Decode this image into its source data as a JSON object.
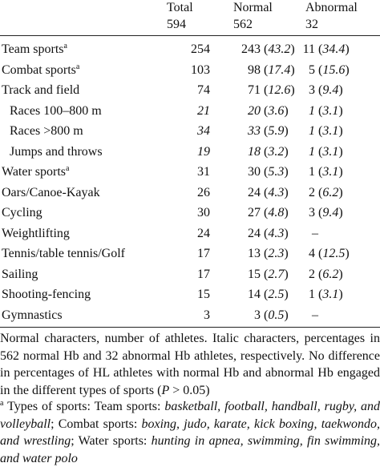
{
  "header": {
    "columns": [
      {
        "label": "Total",
        "n": 594
      },
      {
        "label": "Normal",
        "n": 562
      },
      {
        "label": "Abnormal",
        "n": 32
      }
    ]
  },
  "table": {
    "rows": [
      {
        "sport": "Team sports",
        "sup": "a",
        "total": 254,
        "normal": {
          "n": 243,
          "pct": 43.2
        },
        "abnormal": {
          "n": 11,
          "pct": 34.4
        }
      },
      {
        "sport": "Combat sports",
        "sup": "a",
        "total": 103,
        "normal": {
          "n": 98,
          "pct": 17.4
        },
        "abnormal": {
          "n": 5,
          "pct": 15.6
        }
      },
      {
        "sport": "Track and field",
        "total": 74,
        "normal": {
          "n": 71,
          "pct": 12.6
        },
        "abnormal": {
          "n": 3,
          "pct": 9.4
        }
      },
      {
        "sport": "Races 100–800 m",
        "sub": true,
        "total": 21,
        "normal": {
          "n": 20,
          "pct": 3.6
        },
        "abnormal": {
          "n": 1,
          "pct": 3.1
        }
      },
      {
        "sport": "Races >800 m",
        "sub": true,
        "total": 34,
        "normal": {
          "n": 33,
          "pct": 5.9
        },
        "abnormal": {
          "n": 1,
          "pct": 3.1
        }
      },
      {
        "sport": "Jumps and throws",
        "sub": true,
        "total": 19,
        "normal": {
          "n": 18,
          "pct": 3.2
        },
        "abnormal": {
          "n": 1,
          "pct": 3.1
        }
      },
      {
        "sport": "Water sports",
        "sup": "a",
        "total": 31,
        "normal": {
          "n": 30,
          "pct": 5.3
        },
        "abnormal": {
          "n": 1,
          "pct": 3.1
        }
      },
      {
        "sport": "Oars/Canoe-Kayak",
        "total": 26,
        "normal": {
          "n": 24,
          "pct": 4.3
        },
        "abnormal": {
          "n": 2,
          "pct": 6.2
        }
      },
      {
        "sport": "Cycling",
        "total": 30,
        "normal": {
          "n": 27,
          "pct": 4.8
        },
        "abnormal": {
          "n": 3,
          "pct": 9.4
        }
      },
      {
        "sport": "Weightlifting",
        "total": 24,
        "normal": {
          "n": 24,
          "pct": 4.3
        },
        "abnormal": "–"
      },
      {
        "sport": "Tennis/table tennis/Golf",
        "total": 17,
        "normal": {
          "n": 13,
          "pct": 2.3
        },
        "abnormal": {
          "n": 4,
          "pct": 12.5
        }
      },
      {
        "sport": "Sailing",
        "total": 17,
        "normal": {
          "n": 15,
          "pct": 2.7
        },
        "abnormal": {
          "n": 2,
          "pct": 6.2
        }
      },
      {
        "sport": "Shooting-fencing",
        "total": 15,
        "normal": {
          "n": 14,
          "pct": 2.5
        },
        "abnormal": {
          "n": 1,
          "pct": 3.1
        }
      },
      {
        "sport": "Gymnastics",
        "total": 3,
        "normal": {
          "n": 3,
          "pct": 0.5
        },
        "abnormal": "–"
      }
    ]
  },
  "notes": [
    {
      "segments": [
        {
          "text": "Normal characters, number of athletes. Italic characters, percentages in 562 normal Hb and 32 abnormal Hb athletes, respectively. No difference in percentages of HL athletes with normal Hb and abnormal Hb engaged in the different types of sports ("
        },
        {
          "text": "P",
          "italic": true
        },
        {
          "text": " > 0.05)"
        }
      ]
    },
    {
      "sup": "a",
      "segments": [
        {
          "text": " Types of sports: Team sports: "
        },
        {
          "text": "basketball, football, handball, rugby, and volleyball",
          "italic": true
        },
        {
          "text": "; Combat sports: "
        },
        {
          "text": "boxing, judo, karate, kick boxing, taekwondo, and wrestling",
          "italic": true
        },
        {
          "text": "; Water sports: "
        },
        {
          "text": "hunting in apnea, swimming, fin swimming, and water polo",
          "italic": true
        }
      ]
    }
  ]
}
